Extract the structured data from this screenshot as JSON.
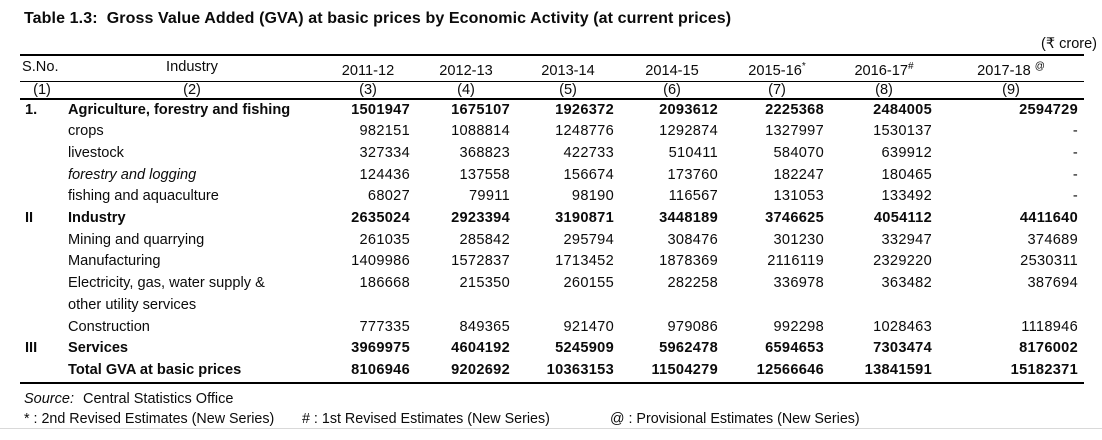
{
  "title": "Table 1.3:  Gross Value Added (GVA) at basic prices by Economic Activity (at current prices)",
  "unit_note": "(₹ crore)",
  "table": {
    "sno_header": "S.No.",
    "industry_header": "Industry",
    "year_columns": [
      {
        "label": "2011-12",
        "sup": "",
        "gap": false
      },
      {
        "label": "2012-13",
        "sup": "",
        "gap": false
      },
      {
        "label": "2013-14",
        "sup": "",
        "gap": false
      },
      {
        "label": "2014-15",
        "sup": "",
        "gap": false
      },
      {
        "label": "2015-16",
        "sup": "*",
        "gap": false
      },
      {
        "label": "2016-17",
        "sup": "#",
        "gap": false
      },
      {
        "label": "2017-18",
        "sup": "@",
        "gap": true
      }
    ],
    "column_numbers": [
      "(1)",
      "(2)",
      "(3)",
      "(4)",
      "(5)",
      "(6)",
      "(7)",
      "(8)",
      "(9)"
    ],
    "rows": [
      {
        "sno": "1.",
        "label": "Agriculture, forestry and fishing",
        "label2": "",
        "style": "bold",
        "values": [
          "1501947",
          "1675107",
          "1926372",
          "2093612",
          "2225368",
          "2484005",
          "2594729"
        ]
      },
      {
        "sno": "",
        "label": "crops",
        "label2": "",
        "style": "normal",
        "values": [
          "982151",
          "1088814",
          "1248776",
          "1292874",
          "1327997",
          "1530137",
          "-"
        ]
      },
      {
        "sno": "",
        "label": "livestock",
        "label2": "",
        "style": "normal",
        "values": [
          "327334",
          "368823",
          "422733",
          "510411",
          "584070",
          "639912",
          "-"
        ]
      },
      {
        "sno": "",
        "label": "forestry and logging",
        "label2": "",
        "style": "italic",
        "values": [
          "124436",
          "137558",
          "156674",
          "173760",
          "182247",
          "180465",
          "-"
        ]
      },
      {
        "sno": "",
        "label": "fishing and aquaculture",
        "label2": "",
        "style": "normal",
        "values": [
          "68027",
          "79911",
          "98190",
          "116567",
          "131053",
          "133492",
          "-"
        ]
      },
      {
        "sno": "II",
        "label": "Industry",
        "label2": "",
        "style": "bold",
        "values": [
          "2635024",
          "2923394",
          "3190871",
          "3448189",
          "3746625",
          "4054112",
          "4411640"
        ]
      },
      {
        "sno": "",
        "label": "Mining and quarrying",
        "label2": "",
        "style": "normal",
        "values": [
          "261035",
          "285842",
          "295794",
          "308476",
          "301230",
          "332947",
          "374689"
        ]
      },
      {
        "sno": "",
        "label": "Manufacturing",
        "label2": "",
        "style": "normal",
        "values": [
          "1409986",
          "1572837",
          "1713452",
          "1878369",
          "2116119",
          "2329220",
          "2530311"
        ]
      },
      {
        "sno": "",
        "label": "Electricity, gas, water supply &",
        "label2": "other utility services",
        "style": "normal",
        "values": [
          "186668",
          "215350",
          "260155",
          "282258",
          "336978",
          "363482",
          "387694"
        ]
      },
      {
        "sno": "",
        "label": "Construction",
        "label2": "",
        "style": "normal",
        "values": [
          "777335",
          "849365",
          "921470",
          "979086",
          "992298",
          "1028463",
          "1118946"
        ]
      },
      {
        "sno": "III",
        "label": "Services",
        "label2": "",
        "style": "bold",
        "values": [
          "3969975",
          "4604192",
          "5245909",
          "5962478",
          "6594653",
          "7303474",
          "8176002"
        ]
      },
      {
        "sno": "",
        "label": "Total GVA at basic prices",
        "label2": "",
        "style": "bold",
        "values": [
          "8106946",
          "9202692",
          "10363153",
          "11504279",
          "12566646",
          "13841591",
          "15182371"
        ]
      }
    ]
  },
  "footer": {
    "source_label": "Source:",
    "source_text": "Central Statistics Office",
    "footnotes": [
      "* : 2nd Revised Estimates (New Series)",
      "# : 1st Revised Estimates (New Series)",
      "@ : Provisional Estimates (New Series)"
    ]
  }
}
